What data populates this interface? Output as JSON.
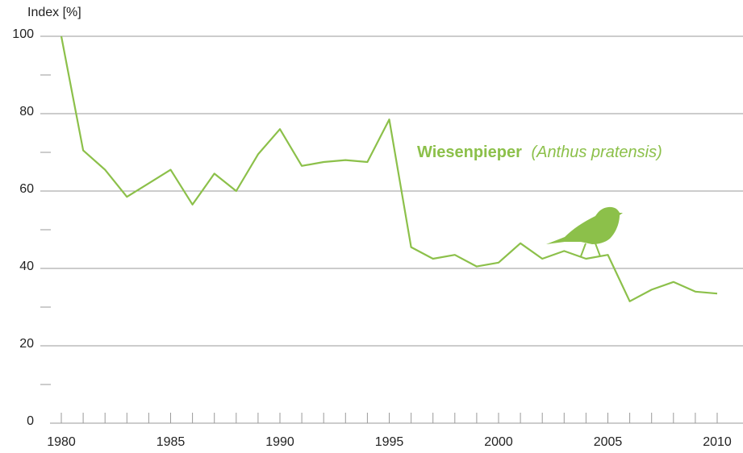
{
  "chart_data": {
    "type": "line",
    "y_label": "Index [%]",
    "x": [
      1980,
      1981,
      1982,
      1983,
      1984,
      1985,
      1986,
      1987,
      1988,
      1989,
      1990,
      1991,
      1992,
      1993,
      1994,
      1995,
      1996,
      1997,
      1998,
      1999,
      2000,
      2001,
      2002,
      2003,
      2004,
      2005,
      2006,
      2007,
      2008,
      2009,
      2010
    ],
    "series": [
      {
        "name": "Wiesenpieper",
        "latin_name": "(Anthus pratensis)",
        "color": "#8cc04a",
        "values": [
          100,
          70.5,
          65.5,
          58.5,
          62,
          65.5,
          56.5,
          64.5,
          60,
          69.5,
          76,
          66.5,
          67.5,
          68,
          67.5,
          78.5,
          45.5,
          42.5,
          43.5,
          40.5,
          41.5,
          46.5,
          42.5,
          44.5,
          42.5,
          43.5,
          31.5,
          34.5,
          36.5,
          34,
          33.5
        ]
      }
    ],
    "xlim": [
      1980,
      2010
    ],
    "xticks": [
      1980,
      1985,
      1990,
      1995,
      2000,
      2005,
      2010
    ],
    "xminorticks": [
      1980,
      1981,
      1982,
      1983,
      1984,
      1985,
      1986,
      1987,
      1988,
      1989,
      1990,
      1991,
      1992,
      1993,
      1994,
      1995,
      1996,
      1997,
      1998,
      1999,
      2000,
      2001,
      2002,
      2003,
      2004,
      2005,
      2006,
      2007,
      2008,
      2009,
      2010
    ],
    "ylim": [
      0,
      100
    ],
    "yticks": [
      0,
      20,
      40,
      60,
      80,
      100
    ],
    "yminorticks": [
      10,
      30,
      50,
      70,
      90
    ],
    "grid": true
  }
}
